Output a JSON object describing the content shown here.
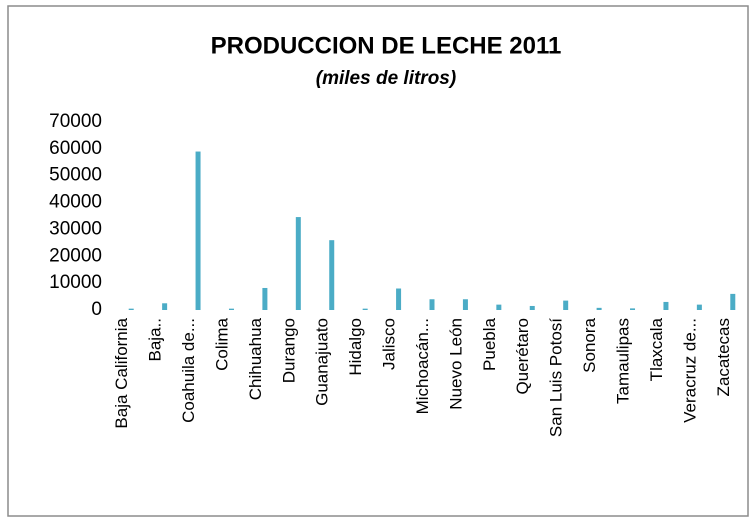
{
  "chart_data": {
    "type": "bar",
    "title": "PRODUCCION DE LECHE 2011",
    "subtitle": "(miles de litros)",
    "categories": [
      "Baja California",
      "Baja..",
      "Coahuila de...",
      "Colima",
      "Chihuahua",
      "Durango",
      "Guanajuato",
      "Hidalgo",
      "Jalisco",
      "Michoacán...",
      "Nuevo León",
      "Puebla",
      "Querétaro",
      "San Luis Potosí",
      "Sonora",
      "Tamaulipas",
      "Tlaxcala",
      "Veracruz de...",
      "Zacatecas"
    ],
    "values": [
      500,
      2500,
      59000,
      500,
      8200,
      34600,
      26000,
      500,
      8000,
      4000,
      4000,
      2000,
      1500,
      3500,
      800,
      600,
      3000,
      2000,
      6000
    ],
    "color": "#4bacc6",
    "ylim": [
      0,
      70000
    ],
    "yticks": [
      0,
      10000,
      20000,
      30000,
      40000,
      50000,
      60000,
      70000
    ]
  }
}
